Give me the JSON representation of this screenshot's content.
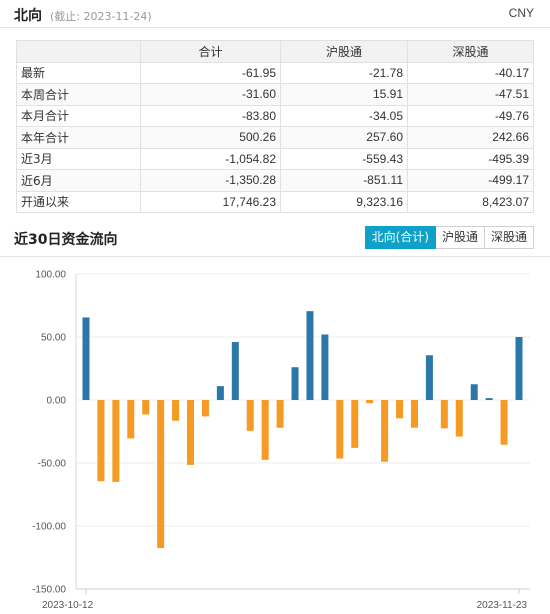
{
  "header": {
    "title": "北向",
    "date_note": "(截止: 2023-11-24)",
    "currency": "CNY"
  },
  "summary_table": {
    "columns": [
      "",
      "合计",
      "沪股通",
      "深股通"
    ],
    "rows": [
      {
        "label": "最新",
        "values": [
          "-61.95",
          "-21.78",
          "-40.17"
        ]
      },
      {
        "label": "本周合计",
        "values": [
          "-31.60",
          "15.91",
          "-47.51"
        ]
      },
      {
        "label": "本月合计",
        "values": [
          "-83.80",
          "-34.05",
          "-49.76"
        ]
      },
      {
        "label": "本年合计",
        "values": [
          "500.26",
          "257.60",
          "242.66"
        ]
      },
      {
        "label": "近3月",
        "values": [
          "-1,054.82",
          "-559.43",
          "-495.39"
        ]
      },
      {
        "label": "近6月",
        "values": [
          "-1,350.28",
          "-851.11",
          "-499.17"
        ]
      },
      {
        "label": "开通以来",
        "values": [
          "17,746.23",
          "9,323.16",
          "8,423.07"
        ]
      }
    ]
  },
  "section": {
    "title": "近30日资金流向",
    "tabs": [
      {
        "label": "北向(合计)",
        "active": true
      },
      {
        "label": "沪股通",
        "active": false
      },
      {
        "label": "深股通",
        "active": false
      }
    ]
  },
  "colors": {
    "positive": "#2b77a8",
    "negative": "#f59a23",
    "tab_active": "#0fa1c7"
  },
  "chart_data": {
    "type": "bar",
    "ylim": [
      -150,
      100
    ],
    "yticks": [
      "100.00",
      "50.00",
      "0.00",
      "-50.00",
      "-100.00",
      "-150.00"
    ],
    "ytick_values": [
      100,
      50,
      0,
      -50,
      -100,
      -150
    ],
    "x_start_label": "2023-10-12",
    "x_end_label": "2023-11-23",
    "values": [
      65.5,
      -64.5,
      -65,
      -30.5,
      -11.5,
      -117.5,
      -16.5,
      -51.5,
      -13,
      11,
      46,
      -24.5,
      -47.5,
      -22,
      26,
      70.5,
      52,
      -46.5,
      -38,
      -2.5,
      -49,
      -14.5,
      -22,
      35.5,
      -22.5,
      -29,
      12.5,
      1.5,
      -35.5,
      50
    ]
  }
}
